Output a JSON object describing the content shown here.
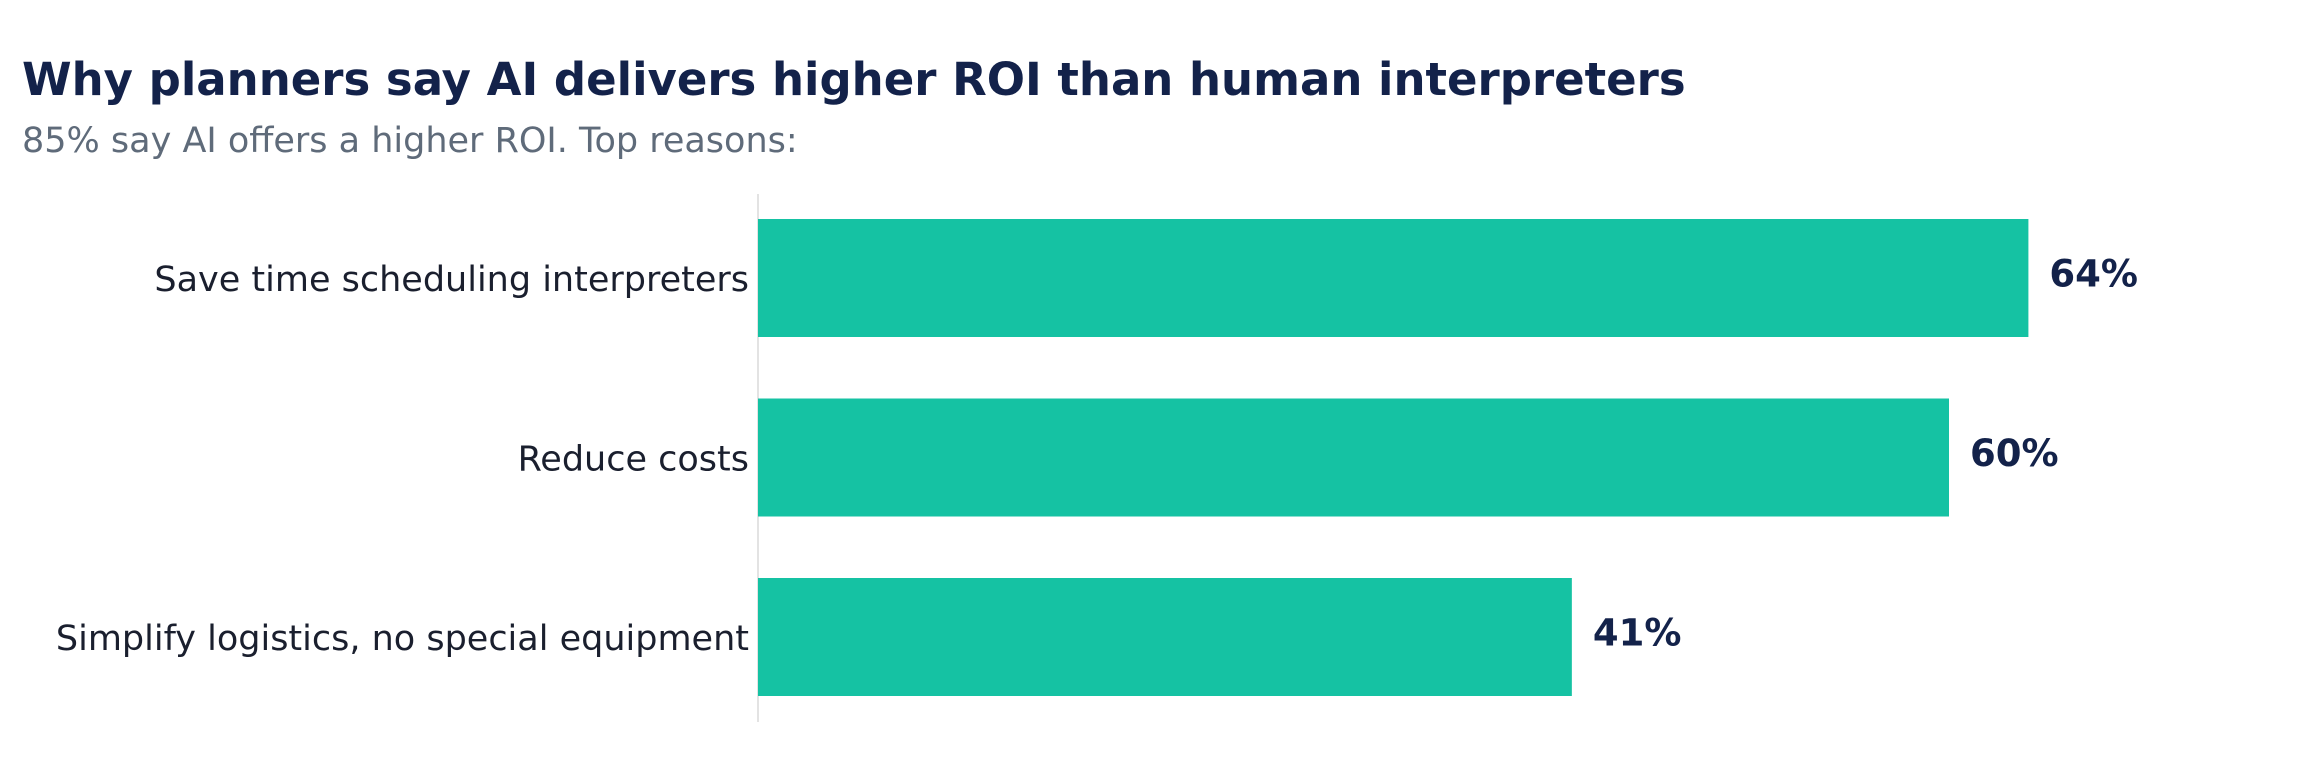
{
  "header": {
    "title": "Why planners say AI delivers higher ROI than human interpreters",
    "subtitle": "85% say AI offers a higher ROI. Top reasons:"
  },
  "colors": {
    "bar": "#15c2a3",
    "title": "#13224a",
    "subtitle": "#5f6b7a",
    "axis_line": "#e3e3e3"
  },
  "chart_data": {
    "type": "bar",
    "orientation": "horizontal",
    "title": "Why planners say AI delivers higher ROI than human interpreters",
    "subtitle": "85% say AI offers a higher ROI. Top reasons:",
    "categories": [
      "Save time scheduling interpreters",
      "Reduce costs",
      "Simplify logistics, no special equipment"
    ],
    "values": [
      64,
      60,
      41
    ],
    "value_labels": [
      "64%",
      "60%",
      "41%"
    ],
    "unit": "%",
    "xlim": [
      0,
      100
    ],
    "grid": false,
    "legend": "none"
  }
}
